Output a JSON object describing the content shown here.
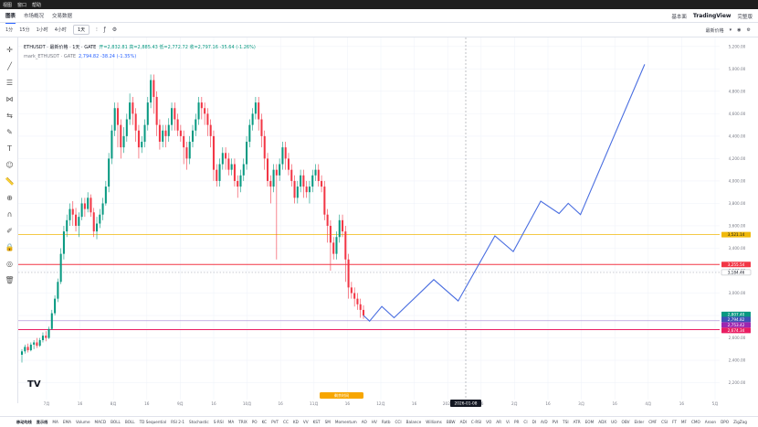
{
  "menu": {
    "items": [
      "视图",
      "窗口",
      "帮助"
    ]
  },
  "tabs": {
    "items": [
      "图表",
      "市场概况",
      "交易数据"
    ],
    "active": 0,
    "right": [
      "基本面",
      "TradingView",
      "完整版"
    ]
  },
  "toolbar": {
    "timeframes": [
      "1分",
      "15分",
      "1小时",
      "4小时",
      "1天"
    ],
    "selected": 4,
    "right_label": "最新价格"
  },
  "legend": {
    "symbol": "ETHUSDT · 最新价格 · 1天 · GATE",
    "ohlc": "开=2,832.81 高=2,885.43 低=2,772.72 收=2,797.16 -35.64 (-1.26%)",
    "mark_symbol": "mark_ETHUSDT · GATE",
    "mark_vals": "2,794.82 -38.24 (-1.35%)"
  },
  "logo_text": "TV",
  "colors": {
    "up": "#089981",
    "down": "#f23645",
    "projection": "#4a6ee0",
    "yellow": "#f0b90b",
    "red_line": "#f23645",
    "purple_line": "#9c27b0",
    "blue_line": "#3f51b5",
    "grid": "#f0f3fa"
  },
  "chart_data": {
    "type": "candlestick",
    "x_ticks": [
      "7月",
      "16",
      "8月",
      "16",
      "9月",
      "16",
      "10月",
      "16",
      "11月",
      "16",
      "12月",
      "16",
      "2026",
      "16",
      "2月",
      "16",
      "3月",
      "16",
      "4月",
      "16",
      "5月"
    ],
    "y_ticks": [
      2200,
      2400,
      2600,
      2800,
      3000,
      3200,
      3400,
      3600,
      3800,
      4000,
      4200,
      4400,
      4600,
      4800,
      5000,
      5200
    ],
    "ylim": [
      2050,
      5280
    ],
    "candles": [
      [
        2450,
        2480,
        2380,
        2500
      ],
      [
        2480,
        2520,
        2460,
        2540
      ],
      [
        2520,
        2490,
        2470,
        2550
      ],
      [
        2490,
        2540,
        2480,
        2560
      ],
      [
        2540,
        2560,
        2500,
        2580
      ],
      [
        2560,
        2530,
        2510,
        2600
      ],
      [
        2530,
        2580,
        2520,
        2600
      ],
      [
        2580,
        2620,
        2560,
        2650
      ],
      [
        2620,
        2600,
        2570,
        2660
      ],
      [
        2600,
        2680,
        2590,
        2700
      ],
      [
        2680,
        2820,
        2670,
        2850
      ],
      [
        2820,
        2950,
        2800,
        2980
      ],
      [
        2950,
        3100,
        2920,
        3130
      ],
      [
        3100,
        3350,
        3080,
        3400
      ],
      [
        3350,
        3550,
        3300,
        3600
      ],
      [
        3550,
        3650,
        3500,
        3700
      ],
      [
        3650,
        3750,
        3600,
        3800
      ],
      [
        3750,
        3700,
        3600,
        3820
      ],
      [
        3700,
        3600,
        3550,
        3760
      ],
      [
        3600,
        3680,
        3500,
        3720
      ],
      [
        3680,
        3800,
        3650,
        3850
      ],
      [
        3800,
        3750,
        3680,
        3850
      ],
      [
        3750,
        3850,
        3720,
        3900
      ],
      [
        3850,
        3720,
        3680,
        3880
      ],
      [
        3720,
        3550,
        3500,
        3760
      ],
      [
        3550,
        3620,
        3480,
        3680
      ],
      [
        3620,
        3700,
        3580,
        3750
      ],
      [
        3700,
        3800,
        3650,
        3850
      ],
      [
        3800,
        3950,
        3780,
        4000
      ],
      [
        3950,
        4200,
        3900,
        4250
      ],
      [
        4200,
        4450,
        4150,
        4500
      ],
      [
        4450,
        4650,
        4400,
        4700
      ],
      [
        4650,
        4500,
        4300,
        4700
      ],
      [
        4500,
        4300,
        4200,
        4550
      ],
      [
        4300,
        4400,
        4250,
        4480
      ],
      [
        4400,
        4550,
        4350,
        4600
      ],
      [
        4550,
        4700,
        4500,
        4780
      ],
      [
        4700,
        4600,
        4500,
        4750
      ],
      [
        4600,
        4450,
        4350,
        4650
      ],
      [
        4450,
        4300,
        4200,
        4500
      ],
      [
        4300,
        4350,
        4250,
        4400
      ],
      [
        4350,
        4500,
        4300,
        4550
      ],
      [
        4500,
        4700,
        4450,
        4750
      ],
      [
        4700,
        4900,
        4650,
        4950
      ],
      [
        4900,
        4750,
        4600,
        4950
      ],
      [
        4750,
        4500,
        4400,
        4800
      ],
      [
        4500,
        4350,
        4280,
        4550
      ],
      [
        4350,
        4450,
        4300,
        4500
      ],
      [
        4450,
        4400,
        4300,
        4500
      ],
      [
        4400,
        4500,
        4350,
        4560
      ],
      [
        4500,
        4650,
        4450,
        4700
      ],
      [
        4650,
        4550,
        4450,
        4700
      ],
      [
        4550,
        4450,
        4400,
        4600
      ],
      [
        4450,
        4400,
        4350,
        4500
      ],
      [
        4400,
        4300,
        4150,
        4450
      ],
      [
        4300,
        4200,
        4100,
        4350
      ],
      [
        4200,
        4350,
        4150,
        4400
      ],
      [
        4350,
        4450,
        4300,
        4500
      ],
      [
        4450,
        4550,
        4400,
        4600
      ],
      [
        4550,
        4700,
        4500,
        4750
      ],
      [
        4700,
        4650,
        4550,
        4750
      ],
      [
        4650,
        4600,
        4500,
        4700
      ],
      [
        4600,
        4500,
        4400,
        4650
      ],
      [
        4500,
        4400,
        4300,
        4550
      ],
      [
        4400,
        4100,
        4000,
        4450
      ],
      [
        4100,
        4000,
        3950,
        4150
      ],
      [
        4000,
        4150,
        3950,
        4200
      ],
      [
        4150,
        4250,
        4100,
        4300
      ],
      [
        4250,
        4200,
        4100,
        4300
      ],
      [
        4200,
        4100,
        4050,
        4250
      ],
      [
        4100,
        4150,
        4050,
        4200
      ],
      [
        4150,
        4000,
        3950,
        4200
      ],
      [
        4000,
        3950,
        3850,
        4050
      ],
      [
        3950,
        4050,
        3900,
        4100
      ],
      [
        4050,
        4150,
        4000,
        4200
      ],
      [
        4150,
        4350,
        4100,
        4400
      ],
      [
        4350,
        4500,
        4300,
        4550
      ],
      [
        4500,
        4600,
        4450,
        4650
      ],
      [
        4600,
        4700,
        4550,
        4750
      ],
      [
        4700,
        4550,
        4450,
        4750
      ],
      [
        4550,
        4400,
        4300,
        4600
      ],
      [
        4400,
        4200,
        4100,
        4450
      ],
      [
        4200,
        4000,
        3950,
        4250
      ],
      [
        4000,
        3950,
        3800,
        4050
      ],
      [
        3950,
        4100,
        3900,
        4150
      ],
      [
        4100,
        4050,
        3300,
        4150
      ],
      [
        4050,
        4150,
        4000,
        4200
      ],
      [
        4150,
        4300,
        4100,
        4350
      ],
      [
        4300,
        4200,
        4100,
        4350
      ],
      [
        4200,
        4100,
        4050,
        4250
      ],
      [
        4100,
        4000,
        3950,
        4150
      ],
      [
        4000,
        3850,
        3800,
        4050
      ],
      [
        3850,
        3950,
        3800,
        4000
      ],
      [
        3950,
        4050,
        3900,
        4100
      ],
      [
        4050,
        3950,
        3850,
        4100
      ],
      [
        3950,
        3900,
        3850,
        4000
      ],
      [
        3900,
        3950,
        3800,
        4000
      ],
      [
        3950,
        4050,
        3900,
        4100
      ],
      [
        4050,
        4100,
        4000,
        4150
      ],
      [
        4100,
        4000,
        3950,
        4150
      ],
      [
        4000,
        3950,
        3900,
        4050
      ],
      [
        3950,
        3700,
        3650,
        4000
      ],
      [
        3700,
        3600,
        3450,
        3750
      ],
      [
        3600,
        3450,
        3200,
        3650
      ],
      [
        3450,
        3350,
        3300,
        3500
      ],
      [
        3350,
        3500,
        3300,
        3550
      ],
      [
        3500,
        3650,
        3450,
        3700
      ],
      [
        3650,
        3550,
        3500,
        3700
      ],
      [
        3550,
        3300,
        3100,
        3600
      ],
      [
        3300,
        3050,
        2950,
        3350
      ],
      [
        3050,
        3000,
        2950,
        3100
      ],
      [
        3000,
        2950,
        2880,
        3050
      ],
      [
        2950,
        2900,
        2850,
        3000
      ],
      [
        2900,
        2850,
        2780,
        2950
      ],
      [
        2850,
        2800,
        2770,
        2890
      ]
    ],
    "projection": [
      [
        0,
        2800
      ],
      [
        2,
        2750
      ],
      [
        6,
        2880
      ],
      [
        10,
        2780
      ],
      [
        23,
        3120
      ],
      [
        31,
        2930
      ],
      [
        43,
        3510
      ],
      [
        49,
        3370
      ],
      [
        58,
        3820
      ],
      [
        64,
        3710
      ],
      [
        67,
        3800
      ],
      [
        71,
        3700
      ],
      [
        92,
        5040
      ]
    ],
    "levels": [
      {
        "label": "3,521.14",
        "value": 3521.14,
        "style": "yellow"
      },
      {
        "label": "3,255.54",
        "value": 3255.54,
        "style": "red"
      },
      {
        "label": "3,184.46",
        "value": 3184.46,
        "style": "dotted"
      },
      {
        "label": "2,807.40",
        "value": 2807.4,
        "style": "green"
      },
      {
        "label": "2,794.82",
        "value": 2794.82,
        "style": "blue"
      },
      {
        "label": "2,753.42",
        "value": 2753.42,
        "style": "purple"
      },
      {
        "label": "2,674.34",
        "value": 2674.34,
        "style": "magenta"
      }
    ],
    "crosshair_label": "2026-01-08",
    "bottom_badge": "剩余时间"
  },
  "indicators": {
    "items": [
      "移动均线",
      "显示线",
      "MA",
      "EMA",
      "Volume",
      "MACD",
      "BOLL",
      "BOLL",
      "TD Sequential",
      "RSI 2-1",
      "Stochastic",
      "S-RSI",
      "MA",
      "TRIX",
      "PO",
      "KC",
      "PVT",
      "CC",
      "KD",
      "VV",
      "KST",
      "SM",
      "Momentum",
      "AO",
      "HV",
      "Ratb",
      "CCI",
      "Balance",
      "Williams",
      "BBW",
      "ADI",
      "C-RSI",
      "VO",
      "AR",
      "Vi",
      "PR",
      "CI",
      "DI",
      "A/D",
      "PVI",
      "TSI",
      "ATR",
      "EOM",
      "ADX",
      "UO",
      "OBV",
      "Elder",
      "CMF",
      "CSI",
      "FT",
      "MF",
      "CMO",
      "Aroon",
      "DPO",
      "ZigZag"
    ]
  }
}
